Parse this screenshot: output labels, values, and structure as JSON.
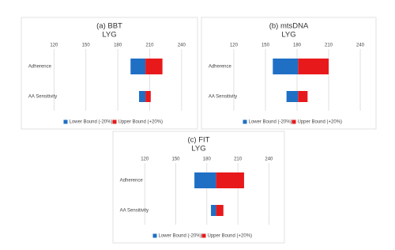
{
  "chart_data": [
    {
      "type": "tornado",
      "title": "(a) BBT",
      "subtitle": "LYG",
      "categories": [
        "Adherence",
        "AA Sensitivity"
      ],
      "base": 206,
      "series": [
        {
          "name": "Lower Bound (-20%)",
          "color": "#1f6fc5",
          "values": [
            192,
            200
          ]
        },
        {
          "name": "Upper Bound (+20%)",
          "color": "#e8191b",
          "values": [
            222,
            211
          ]
        }
      ],
      "xlim": [
        110,
        250
      ],
      "xticks": [
        120,
        150,
        180,
        210,
        240
      ],
      "grid": true
    },
    {
      "type": "tornado",
      "title": "(b) mtsDNA",
      "subtitle": "LYG",
      "categories": [
        "Adherence",
        "AA Sensitivity"
      ],
      "base": 181,
      "series": [
        {
          "name": "Lower Bound (-20%)",
          "color": "#1f6fc5",
          "values": [
            157,
            170
          ]
        },
        {
          "name": "Upper Bound (+20%)",
          "color": "#e8191b",
          "values": [
            210,
            190
          ]
        }
      ],
      "xlim": [
        110,
        250
      ],
      "xticks": [
        120,
        150,
        180,
        210,
        240
      ],
      "grid": true
    },
    {
      "type": "tornado",
      "title": "(c) FIT",
      "subtitle": "LYG",
      "categories": [
        "Adherence",
        "AA Sensitivity"
      ],
      "base": 189,
      "series": [
        {
          "name": "Lower Bound (-20%)",
          "color": "#1f6fc5",
          "values": [
            168,
            184
          ]
        },
        {
          "name": "Upper Bound (+20%)",
          "color": "#e8191b",
          "values": [
            216,
            196
          ]
        }
      ],
      "xlim": [
        110,
        250
      ],
      "xticks": [
        120,
        150,
        180,
        210,
        240
      ],
      "grid": true
    }
  ]
}
